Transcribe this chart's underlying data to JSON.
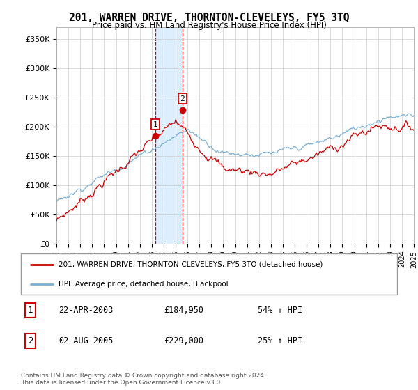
{
  "title": "201, WARREN DRIVE, THORNTON-CLEVELEYS, FY5 3TQ",
  "subtitle": "Price paid vs. HM Land Registry's House Price Index (HPI)",
  "legend_line1": "201, WARREN DRIVE, THORNTON-CLEVELEYS, FY5 3TQ (detached house)",
  "legend_line2": "HPI: Average price, detached house, Blackpool",
  "transaction1_date": "22-APR-2003",
  "transaction1_price": "£184,950",
  "transaction1_hpi": "54% ↑ HPI",
  "transaction2_date": "02-AUG-2005",
  "transaction2_price": "£229,000",
  "transaction2_hpi": "25% ↑ HPI",
  "footer": "Contains HM Land Registry data © Crown copyright and database right 2024.\nThis data is licensed under the Open Government Licence v3.0.",
  "red_color": "#cc0000",
  "blue_color": "#7bafd4",
  "highlight_color": "#ddeeff",
  "ylim": [
    0,
    370000
  ],
  "yticks": [
    0,
    50000,
    100000,
    150000,
    200000,
    250000,
    300000,
    350000
  ],
  "ytick_labels": [
    "£0",
    "£50K",
    "£100K",
    "£150K",
    "£200K",
    "£250K",
    "£300K",
    "£350K"
  ],
  "year_start": 1995,
  "year_end": 2025,
  "t1_year": 2003.29,
  "t2_year": 2005.58,
  "t1_price": 184950,
  "t2_price": 229000
}
